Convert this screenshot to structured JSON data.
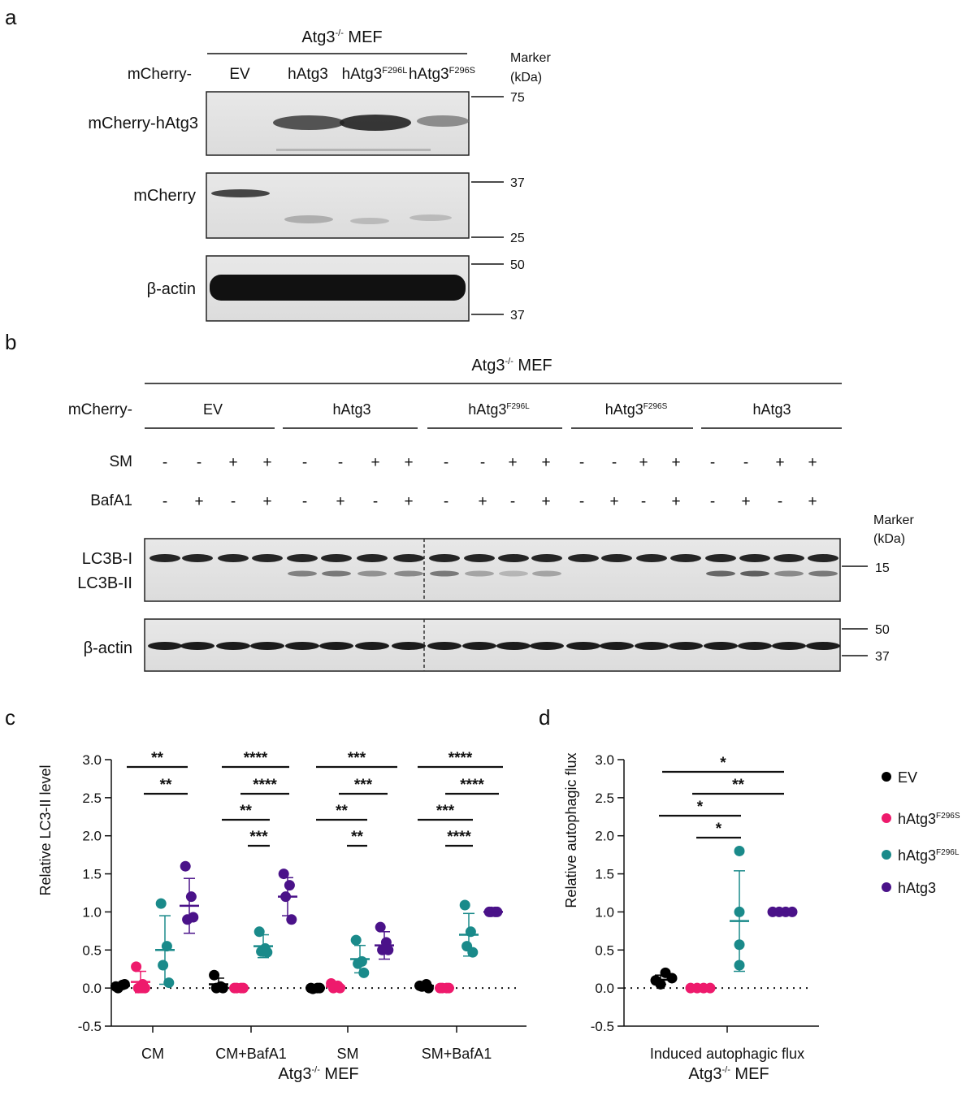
{
  "panels": {
    "a": {
      "letter": "a",
      "cell_line": {
        "base": "Atg3",
        "sup": "-/-",
        "rest": " MEF"
      },
      "prefix": "mCherry-",
      "lanes": [
        {
          "base": "EV",
          "sup": ""
        },
        {
          "base": "hAtg3",
          "sup": ""
        },
        {
          "base": "hAtg3",
          "sup": "F296L"
        },
        {
          "base": "hAtg3",
          "sup": "F296S"
        }
      ],
      "marker_title": [
        "Marker",
        "(kDa)"
      ],
      "blots": [
        {
          "label": "mCherry-hAtg3",
          "markers": [
            "75"
          ]
        },
        {
          "label": "mCherry",
          "markers": [
            "37",
            "25"
          ]
        },
        {
          "label": "β-actin",
          "markers": [
            "50",
            "37"
          ]
        }
      ]
    },
    "b": {
      "letter": "b",
      "cell_line": {
        "base": "Atg3",
        "sup": "-/-",
        "rest": " MEF"
      },
      "prefix": "mCherry-",
      "groups": [
        {
          "base": "EV",
          "sup": ""
        },
        {
          "base": "hAtg3",
          "sup": ""
        },
        {
          "base": "hAtg3",
          "sup": "F296L"
        },
        {
          "base": "hAtg3",
          "sup": "F296S"
        },
        {
          "base": "hAtg3",
          "sup": ""
        }
      ],
      "sm_label": "SM",
      "baf_label": "BafA1",
      "sm_pattern": [
        "-",
        "-",
        "+",
        "+"
      ],
      "baf_pattern": [
        "-",
        "+",
        "-",
        "+"
      ],
      "marker_title": [
        "Marker",
        "(kDa)"
      ],
      "lc3_labels": [
        "LC3B-I",
        "LC3B-II"
      ],
      "lc3_marker": "15",
      "actin_label": "β-actin",
      "actin_markers": [
        "50",
        "37"
      ]
    },
    "c": {
      "letter": "c",
      "xlabel": {
        "base": "Atg3",
        "sup": "-/-",
        "rest": " MEF"
      },
      "ylabel": "Relative LC3-II level",
      "significance": [
        [
          "**",
          "**"
        ],
        [
          "****",
          "****",
          "**",
          "***"
        ],
        [
          "***",
          "***",
          "**",
          "**"
        ],
        [
          "****",
          "****",
          "***",
          "****"
        ]
      ]
    },
    "d": {
      "letter": "d",
      "xlabel": {
        "base": "Atg3",
        "sup": "-/-",
        "rest": " MEF"
      },
      "ylabel": "Relative autophagic flux",
      "significance": [
        "*",
        "**",
        "*",
        "*"
      ]
    }
  },
  "legend": [
    {
      "base": "EV",
      "sup": "",
      "color": "#000000"
    },
    {
      "base": "hAtg3",
      "sup": "F296S",
      "color": "#ee1a6c"
    },
    {
      "base": "hAtg3",
      "sup": "F296L",
      "color": "#1a8a8a"
    },
    {
      "base": "hAtg3",
      "sup": "",
      "color": "#4a1289"
    }
  ],
  "chart_data": [
    {
      "type": "scatter",
      "categories": [
        "CM",
        "CM+BafA1",
        "SM",
        "SM+BafA1"
      ],
      "ylim": [
        -0.5,
        3.0
      ],
      "yticks": [
        "3.0",
        "2.5",
        "2.0",
        "1.5",
        "1.0",
        "0.5",
        "0.0",
        "-0.5"
      ],
      "series": [
        {
          "name": "EV",
          "color": "#000000",
          "points": [
            [
              0.02,
              0.04,
              0.0,
              0.05
            ],
            [
              0.17,
              0.02,
              0.0,
              0.0
            ],
            [
              0.0,
              0.0,
              -0.01,
              0.0
            ],
            [
              0.03,
              0.05,
              0.02,
              0.0
            ]
          ],
          "mean": [
            0.03,
            0.05,
            0.0,
            0.03
          ],
          "sd": [
            0.02,
            0.08,
            0.005,
            0.02
          ]
        },
        {
          "name": "hAtg3F296S",
          "color": "#ee1a6c",
          "points": [
            [
              0.28,
              0.05,
              0.0,
              0.0
            ],
            [
              0.0,
              0.0,
              0.0,
              0.0
            ],
            [
              0.06,
              0.03,
              0.0,
              0.0
            ],
            [
              0.0,
              0.0,
              0.0,
              0.0
            ]
          ],
          "mean": [
            0.08,
            0.0,
            0.02,
            0.0
          ],
          "sd": [
            0.14,
            0.0,
            0.03,
            0.0
          ]
        },
        {
          "name": "hAtg3F296L",
          "color": "#1a8a8a",
          "points": [
            [
              1.11,
              0.55,
              0.3,
              0.07
            ],
            [
              0.74,
              0.52,
              0.48,
              0.47
            ],
            [
              0.63,
              0.35,
              0.32,
              0.2
            ],
            [
              1.09,
              0.74,
              0.55,
              0.47
            ]
          ],
          "mean": [
            0.5,
            0.55,
            0.38,
            0.7
          ],
          "sd": [
            0.45,
            0.15,
            0.18,
            0.28
          ]
        },
        {
          "name": "hAtg3",
          "color": "#4a1289",
          "points": [
            [
              1.6,
              1.2,
              0.9,
              0.93
            ],
            [
              1.5,
              1.35,
              1.2,
              0.9
            ],
            [
              0.8,
              0.6,
              0.5,
              0.5
            ],
            [
              1.0,
              1.0,
              1.0,
              1.0
            ]
          ],
          "mean": [
            1.08,
            1.2,
            0.56,
            1.0
          ],
          "sd": [
            0.36,
            0.25,
            0.18,
            0.0
          ]
        }
      ]
    },
    {
      "type": "scatter",
      "categories": [
        "Induced autophagic flux"
      ],
      "ylim": [
        -0.5,
        3.0
      ],
      "yticks": [
        "3.0",
        "2.5",
        "2.0",
        "1.5",
        "1.0",
        "0.5",
        "0.0",
        "-0.5"
      ],
      "series": [
        {
          "name": "EV",
          "color": "#000000",
          "points": [
            0.2,
            0.1,
            0.05,
            0.13
          ],
          "mean": 0.11,
          "sd": 0.06
        },
        {
          "name": "hAtg3F296S",
          "color": "#ee1a6c",
          "points": [
            0.0,
            0.0,
            0.0,
            0.0
          ],
          "mean": 0.0,
          "sd": 0.0
        },
        {
          "name": "hAtg3F296L",
          "color": "#1a8a8a",
          "points": [
            1.8,
            1.0,
            0.57,
            0.3
          ],
          "mean": 0.88,
          "sd": 0.66
        },
        {
          "name": "hAtg3",
          "color": "#4a1289",
          "points": [
            1.0,
            1.0,
            1.0,
            1.0
          ],
          "mean": 1.0,
          "sd": 0.0
        }
      ]
    }
  ]
}
